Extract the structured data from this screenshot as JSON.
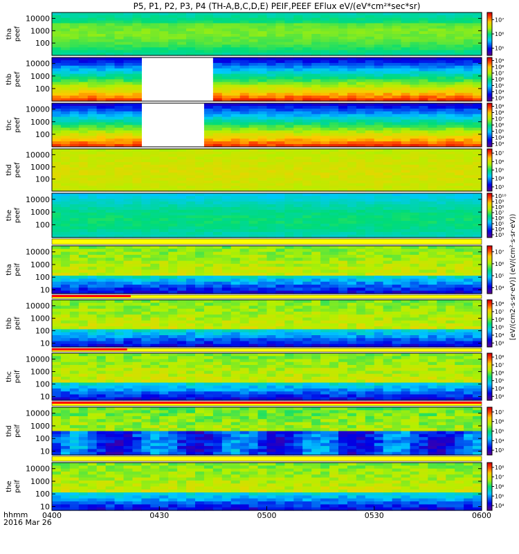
{
  "title": "P5, P1, P2, P3, P4 (TH-A,B,C,D,E) PEIF,PEEF EFlux eV/(eV*cm²*sec*sr)",
  "x_axis": {
    "name": "hhmm",
    "date": "2016 Mar 26",
    "ticks": [
      "0400",
      "0430",
      "0500",
      "0530",
      "0600"
    ]
  },
  "colorbar_label": "[eV/(cm2-s·sr·eV)] (eV/(cm²·s·sr·eV))",
  "chart_data": {
    "type": "heatmap",
    "x_range": [
      "0400",
      "0600"
    ],
    "y_scale": "log",
    "panels": [
      {
        "label1": "tha",
        "label2": "peef",
        "yticks": [
          "100",
          "1000",
          "10000"
        ],
        "ylim": [
          10,
          30000
        ],
        "cb_ticks": [
          "10⁵",
          "10⁶",
          "10⁷"
        ],
        "palette": "green",
        "gap": null
      },
      {
        "label1": "thb",
        "label2": "peef",
        "yticks": [
          "100",
          "1000",
          "10000"
        ],
        "ylim": [
          10,
          30000
        ],
        "cb_ticks": [
          "10³",
          "10⁴",
          "10⁵",
          "10⁶",
          "10⁷",
          "10⁸",
          "10⁹"
        ],
        "palette": "gradient",
        "gap": [
          "0426",
          "0443"
        ]
      },
      {
        "label1": "thc",
        "label2": "peef",
        "yticks": [
          "100",
          "1000",
          "10000"
        ],
        "ylim": [
          10,
          30000
        ],
        "cb_ticks": [
          "10³",
          "10⁴",
          "10⁵",
          "10⁶",
          "10⁷",
          "10⁸",
          "10⁹"
        ],
        "palette": "gradient",
        "gap": [
          "0426",
          "0442"
        ]
      },
      {
        "label1": "thd",
        "label2": "peef",
        "yticks": [
          "100",
          "1000",
          "10000"
        ],
        "ylim": [
          10,
          30000
        ],
        "cb_ticks": [
          "10³",
          "10⁴",
          "10⁵",
          "10⁶",
          "10⁷"
        ],
        "palette": "orange",
        "gap": null
      },
      {
        "label1": "the",
        "label2": "peef",
        "yticks": [
          "100",
          "1000",
          "10000"
        ],
        "ylim": [
          10,
          30000
        ],
        "cb_ticks": [
          "10³",
          "10⁴",
          "10⁵",
          "10⁶",
          "10⁷",
          "10⁸",
          "10⁹",
          "10¹⁰"
        ],
        "palette": "cyan",
        "gap": null
      },
      {
        "label1": "tha",
        "label2": "peif",
        "yticks": [
          "10",
          "100",
          "1000",
          "10000"
        ],
        "ylim": [
          5,
          30000
        ],
        "cb_ticks": [
          "10⁴",
          "10⁵",
          "10⁶",
          "10⁷"
        ],
        "palette": "ion",
        "gap": null
      },
      {
        "label1": "thb",
        "label2": "peif",
        "yticks": [
          "10",
          "100",
          "1000",
          "10000"
        ],
        "ylim": [
          5,
          30000
        ],
        "cb_ticks": [
          "10³",
          "10⁴",
          "10⁵",
          "10⁶",
          "10⁷",
          "10⁸"
        ],
        "palette": "ion",
        "gap": null
      },
      {
        "label1": "thc",
        "label2": "peif",
        "yticks": [
          "10",
          "100",
          "1000",
          "10000"
        ],
        "ylim": [
          5,
          30000
        ],
        "cb_ticks": [
          "10³",
          "10⁴",
          "10⁵",
          "10⁶",
          "10⁷",
          "10⁸"
        ],
        "palette": "ion",
        "gap": null
      },
      {
        "label1": "thd",
        "label2": "peif",
        "yticks": [
          "10",
          "100",
          "1000",
          "10000"
        ],
        "ylim": [
          5,
          30000
        ],
        "cb_ticks": [
          "10³",
          "10⁴",
          "10⁵",
          "10⁶",
          "10⁷"
        ],
        "palette": "ion2",
        "gap": null
      },
      {
        "label1": "the",
        "label2": "peif",
        "yticks": [
          "10",
          "100",
          "1000",
          "10000"
        ],
        "ylim": [
          5,
          30000
        ],
        "cb_ticks": [
          "10⁴",
          "10⁵",
          "10⁶",
          "10⁷",
          "10⁸"
        ],
        "palette": "ion",
        "gap": null
      }
    ]
  }
}
